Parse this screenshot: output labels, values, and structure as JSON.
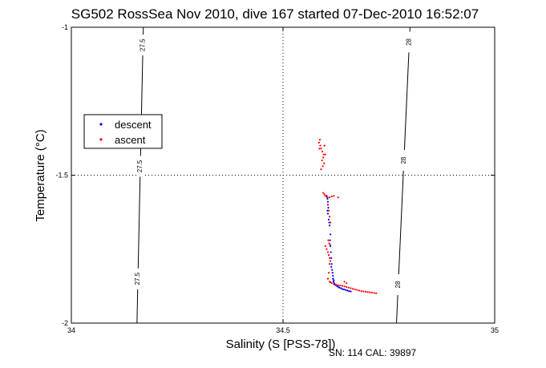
{
  "chart_data": {
    "type": "scatter",
    "title": "SG502 RossSea Nov 2010, dive 167 started 07-Dec-2010 16:52:07",
    "xlabel": "Salinity (S [PSS-78])",
    "ylabel": "Temperature (°C)",
    "xlim": [
      34,
      35
    ],
    "ylim": [
      -2,
      -1
    ],
    "x_ticks": [
      34,
      34.5,
      35
    ],
    "x_tick_labels": [
      "34",
      "34.5",
      "35"
    ],
    "y_ticks": [
      -2,
      -1.5,
      -1
    ],
    "y_tick_labels": [
      "-2",
      "-1.5",
      "-1"
    ],
    "grid": "dotted",
    "legend_position": "left",
    "footer_note": "SN: 114  CAL: 39897",
    "colors": {
      "descent": "#0000ff",
      "ascent": "#ff0000",
      "contour": "#000000",
      "axes": "#000000"
    },
    "isopycnals": [
      {
        "label": "27.5",
        "points": [
          [
            34.17,
            -1.0
          ],
          [
            34.155,
            -2.0
          ]
        ],
        "label_y": [
          -1.06,
          -1.47,
          -1.85
        ]
      },
      {
        "label": "28",
        "points": [
          [
            34.8,
            -1.0
          ],
          [
            34.768,
            -2.0
          ]
        ],
        "label_y": [
          -1.05,
          -1.45,
          -1.87
        ]
      }
    ],
    "series": [
      {
        "name": "descent",
        "marker": "dot",
        "x": [
          34.603,
          34.604,
          34.605,
          34.606,
          34.606,
          34.607,
          34.605,
          34.606,
          34.608,
          34.609,
          34.61,
          34.612,
          34.611,
          34.612,
          34.613,
          34.614,
          34.615,
          34.614,
          34.616,
          34.617,
          34.618,
          34.618,
          34.62,
          34.619,
          34.621,
          34.622,
          34.625,
          34.628,
          34.63,
          34.633,
          34.637,
          34.64,
          34.644,
          34.648,
          34.652,
          34.656,
          34.66
        ],
        "y": [
          -1.57,
          -1.575,
          -1.58,
          -1.59,
          -1.6,
          -1.61,
          -1.62,
          -1.63,
          -1.65,
          -1.66,
          -1.67,
          -1.7,
          -1.72,
          -1.74,
          -1.76,
          -1.78,
          -1.8,
          -1.81,
          -1.82,
          -1.83,
          -1.84,
          -1.85,
          -1.855,
          -1.86,
          -1.865,
          -1.87,
          -1.872,
          -1.875,
          -1.877,
          -1.88,
          -1.882,
          -1.885,
          -1.886,
          -1.888,
          -1.89,
          -1.892,
          -1.893
        ]
      },
      {
        "name": "ascent",
        "marker": "dot",
        "x": [
          34.585,
          34.588,
          34.59,
          34.593,
          34.596,
          34.598,
          34.592,
          34.595,
          34.6,
          34.597,
          34.594,
          34.59,
          34.587,
          34.586,
          34.595,
          34.598,
          34.6,
          34.605,
          34.61,
          34.615,
          34.62,
          34.63,
          34.606,
          34.608,
          34.61,
          34.612,
          34.607,
          34.609,
          34.611,
          34.6,
          34.603,
          34.606,
          34.608,
          34.61,
          34.612,
          34.61,
          34.608,
          34.606,
          34.61,
          34.612,
          34.615,
          34.62,
          34.625,
          34.63,
          34.635,
          34.64,
          34.645,
          34.65,
          34.655,
          34.66,
          34.665,
          34.67,
          34.675,
          34.68,
          34.685,
          34.69,
          34.695,
          34.7,
          34.705,
          34.71,
          34.715,
          34.72,
          34.645,
          34.65
        ],
        "y": [
          -1.39,
          -1.4,
          -1.41,
          -1.42,
          -1.43,
          -1.4,
          -1.45,
          -1.44,
          -1.43,
          -1.46,
          -1.47,
          -1.48,
          -1.38,
          -1.41,
          -1.56,
          -1.565,
          -1.57,
          -1.575,
          -1.575,
          -1.572,
          -1.57,
          -1.575,
          -1.6,
          -1.62,
          -1.64,
          -1.66,
          -1.72,
          -1.73,
          -1.735,
          -1.74,
          -1.75,
          -1.76,
          -1.77,
          -1.78,
          -1.79,
          -1.8,
          -1.83,
          -1.85,
          -1.86,
          -1.862,
          -1.865,
          -1.868,
          -1.87,
          -1.872,
          -1.873,
          -1.874,
          -1.876,
          -1.878,
          -1.88,
          -1.882,
          -1.884,
          -1.886,
          -1.888,
          -1.89,
          -1.892,
          -1.893,
          -1.894,
          -1.895,
          -1.896,
          -1.897,
          -1.898,
          -1.899,
          -1.86,
          -1.865
        ]
      }
    ]
  }
}
